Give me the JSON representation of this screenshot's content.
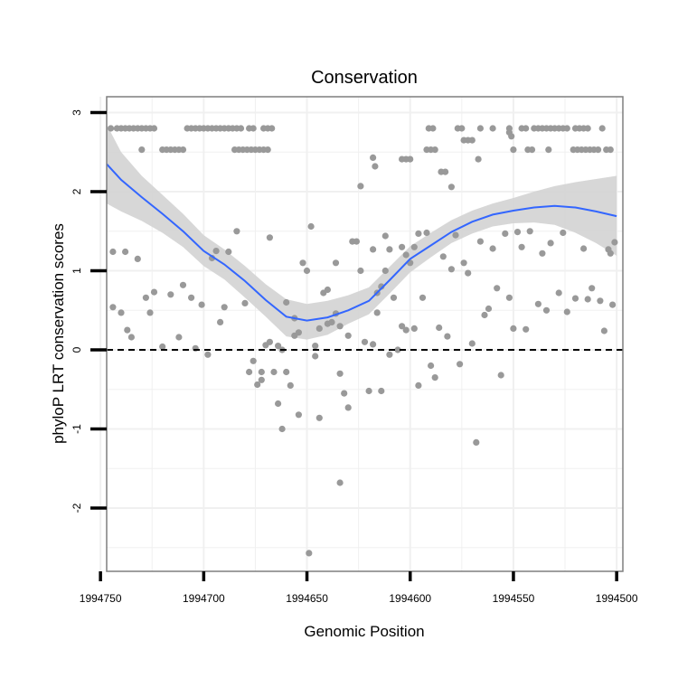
{
  "chart_data": {
    "type": "scatter",
    "title": "Conservation",
    "xlabel": "Genomic Position",
    "ylabel": "phyloP LRT conservation scores",
    "x_reversed": true,
    "xlim": [
      1994747,
      1994497
    ],
    "ylim": [
      -2.8,
      3.2
    ],
    "x_ticks": [
      1994750,
      1994700,
      1994650,
      1994600,
      1994550,
      1994500
    ],
    "y_ticks": [
      3,
      2,
      1,
      0,
      -1,
      -2
    ],
    "grid": true,
    "legend": "none",
    "reference_line": {
      "y": 0,
      "style": "dashed"
    },
    "colors": {
      "points": "#999999",
      "smooth_line": "#3366ff",
      "confidence_band": "#d3d3d3",
      "grid": "#f0f0f0",
      "panel_border": "#7f7f7f",
      "reference_line": "#000000"
    },
    "points": [
      [
        1994745,
        2.8
      ],
      [
        1994742,
        2.8
      ],
      [
        1994740,
        2.8
      ],
      [
        1994738,
        2.8
      ],
      [
        1994736,
        2.8
      ],
      [
        1994734,
        2.8
      ],
      [
        1994732,
        2.8
      ],
      [
        1994730,
        2.8
      ],
      [
        1994728,
        2.8
      ],
      [
        1994726,
        2.8
      ],
      [
        1994724,
        2.8
      ],
      [
        1994708,
        2.8
      ],
      [
        1994706,
        2.8
      ],
      [
        1994704,
        2.8
      ],
      [
        1994702,
        2.8
      ],
      [
        1994700,
        2.8
      ],
      [
        1994698,
        2.8
      ],
      [
        1994696,
        2.8
      ],
      [
        1994694,
        2.8
      ],
      [
        1994692,
        2.8
      ],
      [
        1994690,
        2.8
      ],
      [
        1994688,
        2.8
      ],
      [
        1994686,
        2.8
      ],
      [
        1994684,
        2.8
      ],
      [
        1994682,
        2.8
      ],
      [
        1994678,
        2.8
      ],
      [
        1994676,
        2.8
      ],
      [
        1994671,
        2.8
      ],
      [
        1994669,
        2.8
      ],
      [
        1994667,
        2.8
      ],
      [
        1994730,
        2.53
      ],
      [
        1994720,
        2.53
      ],
      [
        1994718,
        2.53
      ],
      [
        1994716,
        2.53
      ],
      [
        1994714,
        2.53
      ],
      [
        1994712,
        2.53
      ],
      [
        1994710,
        2.53
      ],
      [
        1994685,
        2.53
      ],
      [
        1994683,
        2.53
      ],
      [
        1994681,
        2.53
      ],
      [
        1994679,
        2.53
      ],
      [
        1994677,
        2.53
      ],
      [
        1994675,
        2.53
      ],
      [
        1994673,
        2.53
      ],
      [
        1994671,
        2.53
      ],
      [
        1994669,
        2.53
      ],
      [
        1994591,
        2.8
      ],
      [
        1994589,
        2.8
      ],
      [
        1994577,
        2.8
      ],
      [
        1994575,
        2.8
      ],
      [
        1994566,
        2.8
      ],
      [
        1994560,
        2.8
      ],
      [
        1994552,
        2.8
      ],
      [
        1994546,
        2.8
      ],
      [
        1994544,
        2.8
      ],
      [
        1994540,
        2.8
      ],
      [
        1994538,
        2.8
      ],
      [
        1994536,
        2.8
      ],
      [
        1994534,
        2.8
      ],
      [
        1994532,
        2.8
      ],
      [
        1994530,
        2.8
      ],
      [
        1994528,
        2.8
      ],
      [
        1994526,
        2.8
      ],
      [
        1994524,
        2.8
      ],
      [
        1994520,
        2.8
      ],
      [
        1994518,
        2.8
      ],
      [
        1994516,
        2.8
      ],
      [
        1994514,
        2.8
      ],
      [
        1994507,
        2.8
      ],
      [
        1994592,
        2.53
      ],
      [
        1994590,
        2.53
      ],
      [
        1994588,
        2.53
      ],
      [
        1994550,
        2.53
      ],
      [
        1994543,
        2.53
      ],
      [
        1994541,
        2.53
      ],
      [
        1994533,
        2.53
      ],
      [
        1994521,
        2.53
      ],
      [
        1994519,
        2.53
      ],
      [
        1994517,
        2.53
      ],
      [
        1994515,
        2.53
      ],
      [
        1994513,
        2.53
      ],
      [
        1994511,
        2.53
      ],
      [
        1994509,
        2.53
      ],
      [
        1994505,
        2.53
      ],
      [
        1994503,
        2.53
      ],
      [
        1994552,
        2.75
      ],
      [
        1994551,
        2.7
      ],
      [
        1994574,
        2.65
      ],
      [
        1994572,
        2.65
      ],
      [
        1994570,
        2.65
      ],
      [
        1994618,
        2.43
      ],
      [
        1994617,
        2.32
      ],
      [
        1994604,
        2.41
      ],
      [
        1994602,
        2.41
      ],
      [
        1994600,
        2.41
      ],
      [
        1994624,
        2.07
      ],
      [
        1994585,
        2.25
      ],
      [
        1994583,
        2.25
      ],
      [
        1994567,
        2.41
      ],
      [
        1994580,
        2.06
      ],
      [
        1994744,
        1.24
      ],
      [
        1994738,
        1.24
      ],
      [
        1994732,
        1.15
      ],
      [
        1994744,
        0.54
      ],
      [
        1994740,
        0.47
      ],
      [
        1994737,
        0.25
      ],
      [
        1994735,
        0.16
      ],
      [
        1994728,
        0.66
      ],
      [
        1994726,
        0.47
      ],
      [
        1994724,
        0.73
      ],
      [
        1994720,
        0.04
      ],
      [
        1994716,
        0.7
      ],
      [
        1994712,
        0.16
      ],
      [
        1994710,
        0.82
      ],
      [
        1994706,
        0.66
      ],
      [
        1994704,
        0.02
      ],
      [
        1994701,
        0.57
      ],
      [
        1994698,
        -0.06
      ],
      [
        1994696,
        1.16
      ],
      [
        1994694,
        1.25
      ],
      [
        1994692,
        0.35
      ],
      [
        1994690,
        0.54
      ],
      [
        1994688,
        1.24
      ],
      [
        1994684,
        1.5
      ],
      [
        1994680,
        0.59
      ],
      [
        1994678,
        -0.28
      ],
      [
        1994676,
        -0.14
      ],
      [
        1994674,
        -0.44
      ],
      [
        1994672,
        -0.28
      ],
      [
        1994670,
        0.06
      ],
      [
        1994668,
        1.42
      ],
      [
        1994666,
        -0.28
      ],
      [
        1994664,
        -0.68
      ],
      [
        1994662,
        0.0
      ],
      [
        1994660,
        -0.28
      ],
      [
        1994658,
        -0.45
      ],
      [
        1994656,
        0.4
      ],
      [
        1994654,
        -0.82
      ],
      [
        1994652,
        1.1
      ],
      [
        1994650,
        1.0
      ],
      [
        1994648,
        1.56
      ],
      [
        1994646,
        -0.08
      ],
      [
        1994644,
        -0.86
      ],
      [
        1994642,
        0.72
      ],
      [
        1994640,
        0.76
      ],
      [
        1994638,
        0.35
      ],
      [
        1994636,
        1.1
      ],
      [
        1994634,
        -0.3
      ],
      [
        1994632,
        -0.55
      ],
      [
        1994630,
        -0.73
      ],
      [
        1994628,
        1.37
      ],
      [
        1994626,
        1.37
      ],
      [
        1994624,
        1.0
      ],
      [
        1994622,
        0.1
      ],
      [
        1994620,
        -0.52
      ],
      [
        1994618,
        1.27
      ],
      [
        1994616,
        0.47
      ],
      [
        1994614,
        -0.52
      ],
      [
        1994612,
        1.44
      ],
      [
        1994610,
        1.27
      ],
      [
        1994608,
        0.66
      ],
      [
        1994606,
        0.0
      ],
      [
        1994604,
        1.3
      ],
      [
        1994602,
        0.25
      ],
      [
        1994600,
        1.1
      ],
      [
        1994598,
        1.3
      ],
      [
        1994596,
        1.47
      ],
      [
        1994594,
        0.66
      ],
      [
        1994592,
        1.48
      ],
      [
        1994590,
        -0.2
      ],
      [
        1994588,
        -0.35
      ],
      [
        1994586,
        0.28
      ],
      [
        1994584,
        1.18
      ],
      [
        1994582,
        0.17
      ],
      [
        1994580,
        1.02
      ],
      [
        1994578,
        1.45
      ],
      [
        1994576,
        -0.18
      ],
      [
        1994574,
        1.1
      ],
      [
        1994572,
        0.97
      ],
      [
        1994570,
        0.08
      ],
      [
        1994568,
        -1.17
      ],
      [
        1994566,
        1.37
      ],
      [
        1994564,
        0.44
      ],
      [
        1994562,
        0.52
      ],
      [
        1994560,
        1.28
      ],
      [
        1994558,
        0.78
      ],
      [
        1994556,
        -0.32
      ],
      [
        1994554,
        1.47
      ],
      [
        1994552,
        0.66
      ],
      [
        1994550,
        0.27
      ],
      [
        1994548,
        1.49
      ],
      [
        1994546,
        1.3
      ],
      [
        1994544,
        0.26
      ],
      [
        1994542,
        1.5
      ],
      [
        1994538,
        0.58
      ],
      [
        1994536,
        1.22
      ],
      [
        1994534,
        0.5
      ],
      [
        1994532,
        1.35
      ],
      [
        1994528,
        0.72
      ],
      [
        1994526,
        1.48
      ],
      [
        1994524,
        0.48
      ],
      [
        1994520,
        0.65
      ],
      [
        1994516,
        1.28
      ],
      [
        1994514,
        0.64
      ],
      [
        1994512,
        0.78
      ],
      [
        1994508,
        0.62
      ],
      [
        1994506,
        0.24
      ],
      [
        1994504,
        1.27
      ],
      [
        1994503,
        1.22
      ],
      [
        1994502,
        0.57
      ],
      [
        1994501,
        1.36
      ],
      [
        1994672,
        -0.38
      ],
      [
        1994668,
        0.1
      ],
      [
        1994664,
        0.05
      ],
      [
        1994660,
        0.6
      ],
      [
        1994656,
        0.18
      ],
      [
        1994654,
        0.22
      ],
      [
        1994646,
        0.05
      ],
      [
        1994644,
        0.27
      ],
      [
        1994640,
        0.33
      ],
      [
        1994636,
        0.46
      ],
      [
        1994634,
        0.3
      ],
      [
        1994630,
        0.18
      ],
      [
        1994662,
        -1.0
      ],
      [
        1994649,
        -2.57
      ],
      [
        1994634,
        -1.68
      ],
      [
        1994618,
        0.07
      ],
      [
        1994616,
        0.72
      ],
      [
        1994614,
        0.8
      ],
      [
        1994612,
        1.0
      ],
      [
        1994610,
        -0.06
      ],
      [
        1994604,
        0.3
      ],
      [
        1994602,
        1.2
      ],
      [
        1994598,
        0.27
      ],
      [
        1994596,
        -0.45
      ]
    ],
    "smooth_curve": [
      [
        1994747,
        2.35
      ],
      [
        1994740,
        2.15
      ],
      [
        1994730,
        1.93
      ],
      [
        1994720,
        1.72
      ],
      [
        1994710,
        1.5
      ],
      [
        1994700,
        1.25
      ],
      [
        1994690,
        1.08
      ],
      [
        1994680,
        0.87
      ],
      [
        1994670,
        0.63
      ],
      [
        1994660,
        0.42
      ],
      [
        1994650,
        0.37
      ],
      [
        1994640,
        0.41
      ],
      [
        1994630,
        0.5
      ],
      [
        1994620,
        0.62
      ],
      [
        1994610,
        0.88
      ],
      [
        1994600,
        1.15
      ],
      [
        1994590,
        1.32
      ],
      [
        1994580,
        1.49
      ],
      [
        1994570,
        1.62
      ],
      [
        1994560,
        1.71
      ],
      [
        1994550,
        1.76
      ],
      [
        1994540,
        1.8
      ],
      [
        1994530,
        1.82
      ],
      [
        1994520,
        1.8
      ],
      [
        1994510,
        1.75
      ],
      [
        1994500,
        1.69
      ]
    ],
    "confidence_band": [
      [
        1994747,
        1.85,
        2.85
      ],
      [
        1994740,
        1.75,
        2.5
      ],
      [
        1994730,
        1.63,
        2.2
      ],
      [
        1994720,
        1.48,
        1.96
      ],
      [
        1994710,
        1.3,
        1.72
      ],
      [
        1994700,
        1.06,
        1.45
      ],
      [
        1994690,
        0.89,
        1.27
      ],
      [
        1994680,
        0.66,
        1.06
      ],
      [
        1994670,
        0.42,
        0.83
      ],
      [
        1994660,
        0.17,
        0.64
      ],
      [
        1994650,
        0.13,
        0.58
      ],
      [
        1994640,
        0.19,
        0.62
      ],
      [
        1994630,
        0.33,
        0.69
      ],
      [
        1994620,
        0.45,
        0.79
      ],
      [
        1994610,
        0.71,
        1.05
      ],
      [
        1994600,
        0.98,
        1.31
      ],
      [
        1994590,
        1.17,
        1.48
      ],
      [
        1994580,
        1.35,
        1.64
      ],
      [
        1994570,
        1.47,
        1.76
      ],
      [
        1994560,
        1.56,
        1.85
      ],
      [
        1994550,
        1.6,
        1.92
      ],
      [
        1994540,
        1.61,
        2.0
      ],
      [
        1994530,
        1.58,
        2.07
      ],
      [
        1994520,
        1.48,
        2.12
      ],
      [
        1994510,
        1.35,
        2.16
      ],
      [
        1994500,
        1.19,
        2.2
      ]
    ]
  }
}
